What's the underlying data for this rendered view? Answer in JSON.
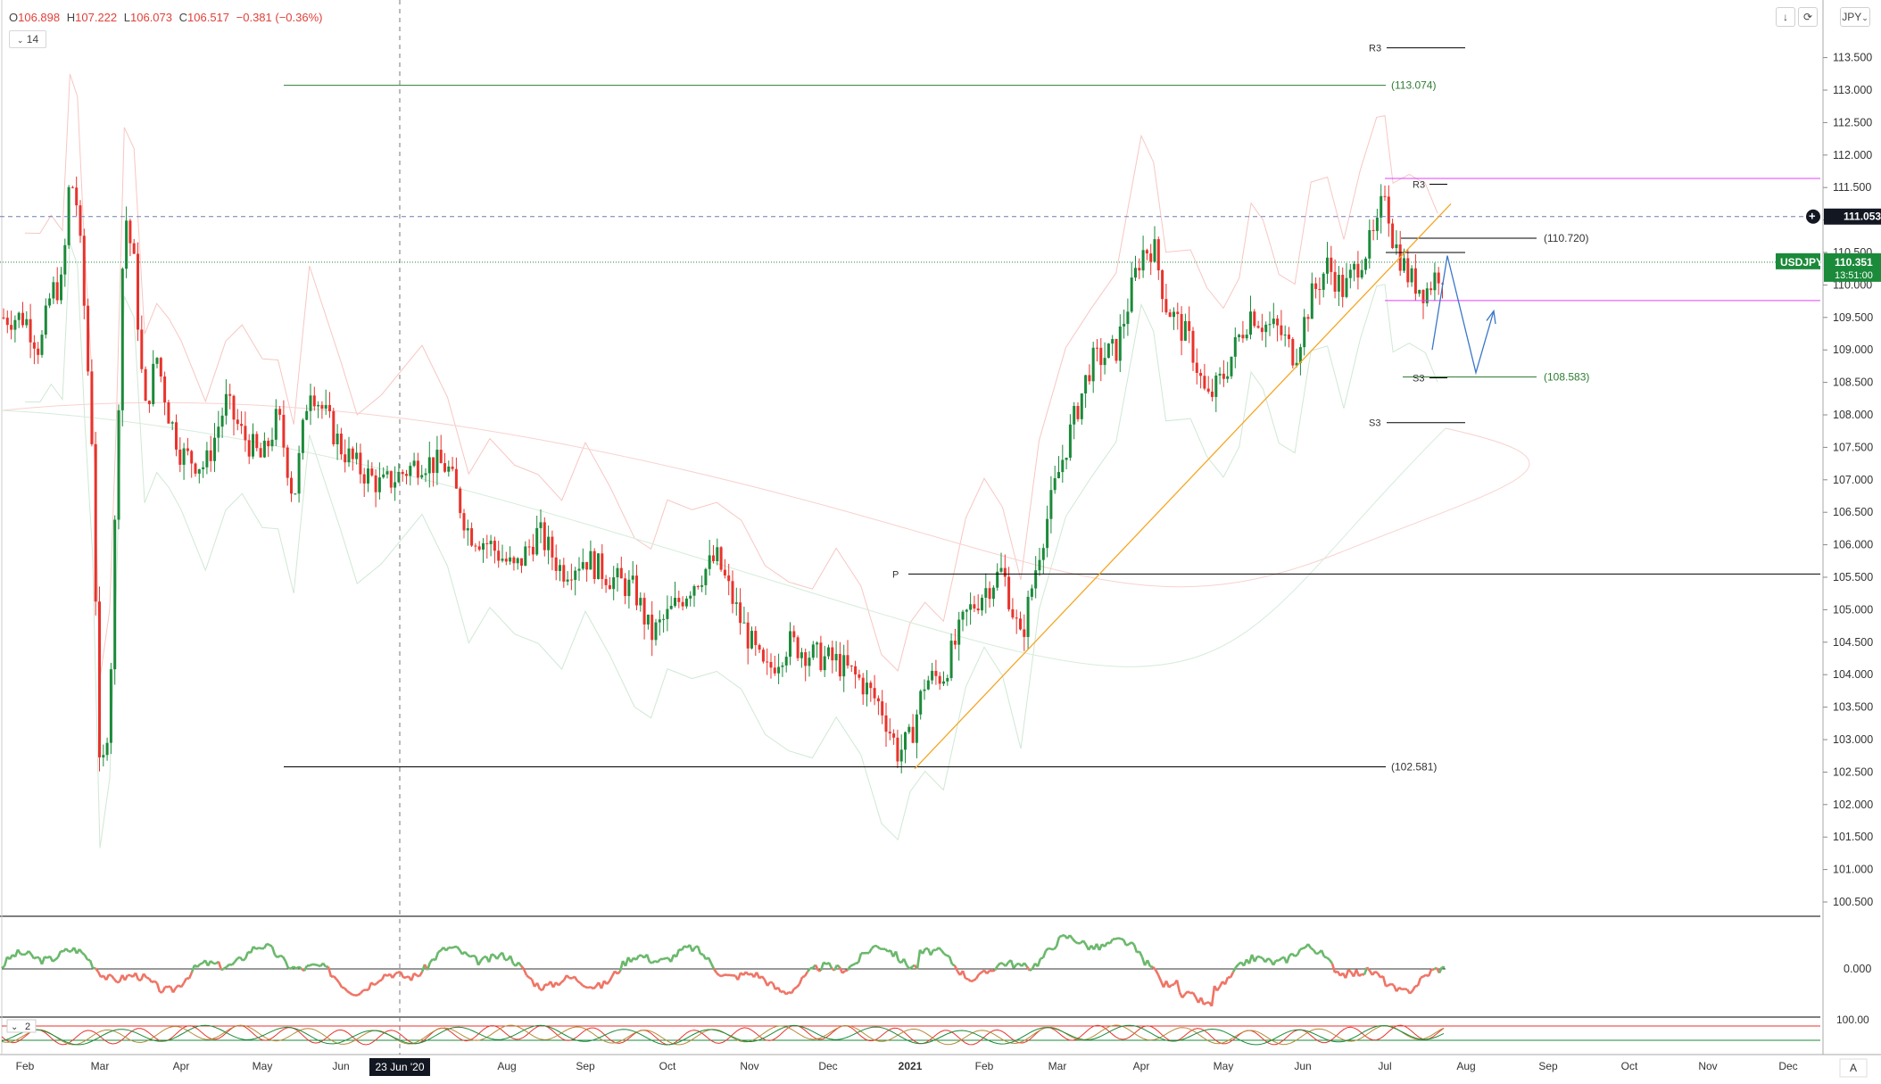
{
  "legend": {
    "open_label": "O",
    "open": "106.898",
    "high_label": "H",
    "high": "107.222",
    "low_label": "L",
    "low": "106.073",
    "close_label": "C",
    "close": "106.517",
    "change": "−0.381 (−0.36%)",
    "indicator_period": "14"
  },
  "toolbar": {
    "currency_label": "JPY",
    "download_icon": "arrow-down-icon",
    "reset_icon": "refresh-icon"
  },
  "price_axis": {
    "ticks": [
      "113.500",
      "113.000",
      "112.500",
      "112.000",
      "111.500",
      "111.000",
      "110.500",
      "110.000",
      "109.500",
      "109.000",
      "108.500",
      "108.000",
      "107.500",
      "107.000",
      "106.500",
      "106.000",
      "105.500",
      "105.000",
      "104.500",
      "104.000",
      "103.500",
      "103.000",
      "102.500",
      "102.000",
      "101.500",
      "101.000",
      "100.500"
    ],
    "crosshair_price": "111.053",
    "symbol_badge": "USDJPY",
    "last_price": "110.351",
    "countdown": "13:51:00"
  },
  "osc_axis": {
    "zero_label": "0.000"
  },
  "stoch_axis": {
    "top_label": "100.00",
    "period": "2"
  },
  "time_axis": {
    "labels": [
      "Feb",
      "Mar",
      "Apr",
      "May",
      "Jun",
      "Jul",
      "Aug",
      "Sep",
      "Oct",
      "Nov",
      "Dec",
      "2021",
      "Feb",
      "Mar",
      "Apr",
      "May",
      "Jun",
      "Jul",
      "Aug",
      "Sep",
      "Oct",
      "Nov",
      "Dec"
    ],
    "crosshair_date": "23 Jun '20",
    "right_button": "A"
  },
  "annotations": {
    "level_113": "(113.074)",
    "level_110720": "(110.720)",
    "level_108583": "(108.583)",
    "level_102581": "(102.581)",
    "pivot_p": "P",
    "r3_top": "R3",
    "r3_mid": "R3",
    "s3_mid": "S3",
    "s3_low": "S3"
  },
  "colors": {
    "up": "#1b8a3a",
    "down": "#e8332c",
    "osc_up": "#6ab86b",
    "osc_down": "#ef7465",
    "pivot": "#000000",
    "level_green": "#2e7d32",
    "magenta": "#e040fb",
    "trendline": "#f5a623",
    "forecast": "#3a76c9",
    "price_badge": "#1b8a3a"
  },
  "chart_data": {
    "type": "candlestick",
    "symbol": "USDJPY",
    "ylim": [
      100.25,
      113.9
    ],
    "price_ticks": [
      113.5,
      113,
      112.5,
      112,
      111.5,
      111,
      110.5,
      110,
      109.5,
      109,
      108.5,
      108,
      107.5,
      107,
      106.5,
      106,
      105.5,
      105,
      104.5,
      104,
      103.5,
      103,
      102.5,
      102,
      101.5,
      101,
      100.5
    ],
    "months": [
      "Feb",
      "Mar",
      "Apr",
      "May",
      "Jun",
      "Jul",
      "Aug",
      "Sep",
      "Oct",
      "Nov",
      "Dec",
      "2021",
      "Feb",
      "Mar",
      "Apr",
      "May",
      "Jun",
      "Jul",
      "Aug",
      "Sep",
      "Oct",
      "Nov",
      "Dec"
    ],
    "close_path": [
      [
        0,
        109.5
      ],
      [
        0.2,
        109.0
      ],
      [
        0.35,
        109.9
      ],
      [
        0.5,
        110.0
      ],
      [
        0.6,
        111.7
      ],
      [
        0.7,
        111.2
      ],
      [
        0.8,
        109.5
      ],
      [
        0.9,
        107.5
      ],
      [
        1.0,
        102.2
      ],
      [
        1.12,
        103.5
      ],
      [
        1.2,
        107.0
      ],
      [
        1.3,
        111.2
      ],
      [
        1.42,
        110.3
      ],
      [
        1.55,
        108.0
      ],
      [
        1.7,
        108.9
      ],
      [
        1.85,
        108.0
      ],
      [
        2.0,
        107.4
      ],
      [
        2.3,
        107.2
      ],
      [
        2.55,
        108.2
      ],
      [
        2.75,
        107.7
      ],
      [
        3.0,
        107.3
      ],
      [
        3.2,
        108.0
      ],
      [
        3.4,
        106.7
      ],
      [
        3.6,
        108.5
      ],
      [
        4.0,
        107.5
      ],
      [
        4.2,
        107.2
      ],
      [
        4.5,
        106.9
      ],
      [
        5.0,
        107.3
      ],
      [
        5.3,
        107.2
      ],
      [
        5.55,
        106.2
      ],
      [
        5.8,
        106.0
      ],
      [
        6.1,
        105.6
      ],
      [
        6.4,
        106.2
      ],
      [
        6.7,
        105.6
      ],
      [
        7.0,
        105.8
      ],
      [
        7.3,
        105.5
      ],
      [
        7.6,
        105.3
      ],
      [
        7.8,
        104.6
      ],
      [
        8.0,
        104.9
      ],
      [
        8.3,
        105.4
      ],
      [
        8.6,
        105.8
      ],
      [
        8.9,
        104.8
      ],
      [
        9.2,
        104.0
      ],
      [
        9.5,
        104.5
      ],
      [
        9.8,
        104.3
      ],
      [
        10.1,
        104.2
      ],
      [
        10.4,
        103.9
      ],
      [
        10.65,
        103.5
      ],
      [
        10.85,
        102.8
      ],
      [
        11.0,
        103.0
      ],
      [
        11.2,
        103.9
      ],
      [
        11.45,
        104.0
      ],
      [
        11.75,
        104.9
      ],
      [
        12.0,
        105.3
      ],
      [
        12.25,
        105.6
      ],
      [
        12.5,
        104.5
      ],
      [
        12.75,
        105.9
      ],
      [
        13.1,
        107.5
      ],
      [
        13.4,
        108.8
      ],
      [
        13.7,
        109.0
      ],
      [
        14.0,
        110.5
      ],
      [
        14.15,
        110.6
      ],
      [
        14.3,
        109.7
      ],
      [
        14.6,
        109.1
      ],
      [
        14.8,
        108.2
      ],
      [
        15.0,
        108.6
      ],
      [
        15.2,
        109.2
      ],
      [
        15.35,
        109.6
      ],
      [
        15.5,
        109.4
      ],
      [
        15.7,
        109.3
      ],
      [
        15.9,
        108.9
      ],
      [
        16.1,
        109.8
      ],
      [
        16.3,
        110.3
      ],
      [
        16.5,
        109.9
      ],
      [
        16.7,
        110.4
      ],
      [
        16.9,
        110.8
      ],
      [
        17.0,
        111.5
      ],
      [
        17.1,
        110.7
      ],
      [
        17.3,
        110.1
      ],
      [
        17.5,
        109.9
      ],
      [
        17.65,
        110.2
      ]
    ],
    "horizontal_levels": [
      {
        "label": "(113.074)",
        "value": 113.074
      },
      {
        "label": "(110.720)",
        "value": 110.72
      },
      {
        "label": "(108.583)",
        "value": 108.583
      },
      {
        "label": "(102.581)",
        "value": 102.581
      },
      {
        "label": "P",
        "value": 105.55
      },
      {
        "label": "R3",
        "value": 113.65
      },
      {
        "label": "R3",
        "value": 111.55
      },
      {
        "label": "S3",
        "value": 108.57
      },
      {
        "label": "S3",
        "value": 107.88
      }
    ],
    "magenta_levels": [
      111.64,
      109.76
    ],
    "crosshair": {
      "price": 111.053,
      "date": "23 Jun '20"
    },
    "last_price": 110.351
  }
}
